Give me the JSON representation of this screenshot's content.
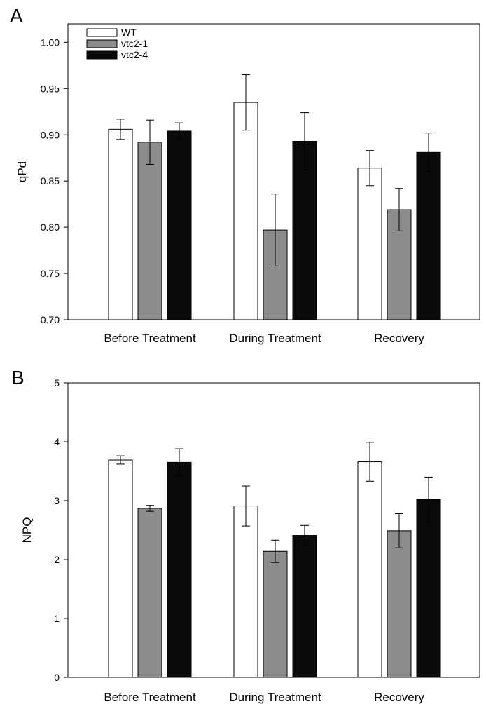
{
  "chart_data": [
    {
      "panel_label": "A",
      "type": "bar",
      "categories": [
        "Before Treatment",
        "During Treatment",
        "Recovery"
      ],
      "series": [
        {
          "name": "WT",
          "color": "#ffffff",
          "values": [
            0.906,
            0.935,
            0.864
          ],
          "errors": [
            0.011,
            0.03,
            0.019
          ]
        },
        {
          "name": "vtc2-1",
          "color": "#8c8c8c",
          "values": [
            0.892,
            0.797,
            0.819
          ],
          "errors": [
            0.024,
            0.039,
            0.023
          ]
        },
        {
          "name": "vtc2-4",
          "color": "#0a0a0a",
          "values": [
            0.904,
            0.893,
            0.881
          ],
          "errors": [
            0.009,
            0.031,
            0.021
          ]
        }
      ],
      "ylabel": "qPd",
      "xlabel": "",
      "ylim": [
        0.7,
        1.02
      ],
      "yticks": [
        "0.70",
        "0.75",
        "0.80",
        "0.85",
        "0.90",
        "0.95",
        "1.00"
      ],
      "legend": "top-left",
      "grid": false
    },
    {
      "panel_label": "B",
      "type": "bar",
      "categories": [
        "Before Treatment",
        "During Treatment",
        "Recovery"
      ],
      "series": [
        {
          "name": "WT",
          "color": "#ffffff",
          "values": [
            3.69,
            2.91,
            3.66
          ],
          "errors": [
            0.07,
            0.34,
            0.33
          ]
        },
        {
          "name": "vtc2-1",
          "color": "#8c8c8c",
          "values": [
            2.87,
            2.14,
            2.49
          ],
          "errors": [
            0.05,
            0.19,
            0.29
          ]
        },
        {
          "name": "vtc2-4",
          "color": "#0a0a0a",
          "values": [
            3.65,
            2.41,
            3.02
          ],
          "errors": [
            0.23,
            0.17,
            0.38
          ]
        }
      ],
      "ylabel": "NPQ",
      "xlabel": "",
      "ylim": [
        0,
        5
      ],
      "yticks": [
        "0",
        "1",
        "2",
        "3",
        "4",
        "5"
      ],
      "legend": "none",
      "grid": false
    }
  ]
}
